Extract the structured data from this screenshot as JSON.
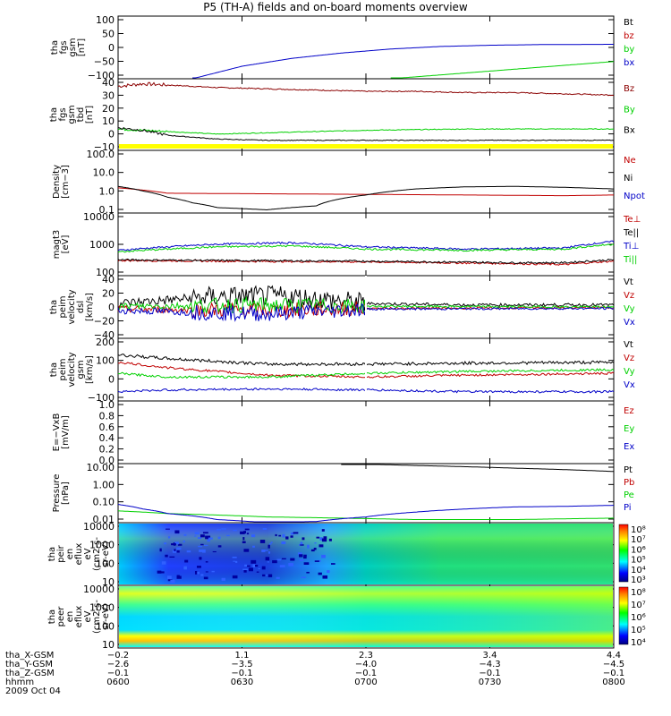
{
  "title": "P5 (TH-A) fields and on-board moments overview",
  "colors": {
    "black": "#000000",
    "red": "#c00000",
    "green": "#00d000",
    "blue": "#0000c8",
    "darkred": "#8b0000",
    "yellow": "#ffff00"
  },
  "chart_data": [
    {
      "type": "line",
      "panel": 1,
      "ylabel": [
        "tha",
        "fgs",
        "gsm",
        "[nT]"
      ],
      "yticks": [
        "100",
        "50",
        "0",
        "−50",
        "−100"
      ],
      "ylim": [
        -100,
        100
      ],
      "series": [
        {
          "name": "Bt",
          "color": "#000000",
          "values": []
        },
        {
          "name": "bz",
          "color": "#c00000",
          "values": []
        },
        {
          "name": "by",
          "color": "#00d000",
          "x": [
            0.55,
            1.0
          ],
          "values": [
            -100,
            -45
          ]
        },
        {
          "name": "bx",
          "color": "#0000c8",
          "x": [
            0.15,
            0.25,
            0.35,
            0.45,
            0.55,
            0.65,
            0.75,
            0.85,
            1.0
          ],
          "values": [
            -100,
            -60,
            -35,
            -18,
            -5,
            3,
            7,
            9,
            10
          ]
        }
      ]
    },
    {
      "type": "line",
      "panel": 2,
      "ylabel": [
        "tha",
        "fgs",
        "gsm",
        "tbd",
        "[nT]"
      ],
      "yticks": [
        "40",
        "30",
        "20",
        "10",
        "0",
        "−10"
      ],
      "ylim": [
        -15,
        42
      ],
      "series": [
        {
          "name": "Bz",
          "color": "#8b0000",
          "x": [
            0,
            0.05,
            0.1,
            0.2,
            0.3,
            0.4,
            0.5,
            0.6,
            0.7,
            0.8,
            0.9,
            1.0
          ],
          "values": [
            36,
            38,
            37,
            35,
            34,
            33,
            32,
            32,
            31,
            31,
            30,
            29
          ]
        },
        {
          "name": "By",
          "color": "#00d000",
          "x": [
            0,
            0.1,
            0.2,
            0.3,
            0.5,
            0.7,
            0.9,
            1.0
          ],
          "values": [
            2,
            0,
            -2,
            -1,
            1,
            2,
            2,
            2
          ]
        },
        {
          "name": "Bx",
          "color": "#000000",
          "x": [
            0,
            0.05,
            0.1,
            0.2,
            0.3,
            0.5,
            0.7,
            0.9,
            1.0
          ],
          "values": [
            3,
            1,
            -3,
            -6,
            -7,
            -7,
            -7,
            -7,
            -7
          ]
        }
      ]
    },
    {
      "type": "line",
      "panel": 3,
      "log": true,
      "ylabel": [
        "Density",
        "[cm−3]"
      ],
      "yticks": [
        "100.0",
        "10.0",
        "1.0",
        "0.1"
      ],
      "ylim": [
        0.06,
        180
      ],
      "series": [
        {
          "name": "Ne",
          "color": "#c00000",
          "x": [
            0,
            0.1,
            0.3,
            0.5,
            0.7,
            0.9,
            1.0
          ],
          "values": [
            1.5,
            0.75,
            0.7,
            0.65,
            0.6,
            0.55,
            0.6
          ]
        },
        {
          "name": "Ni",
          "color": "#000000",
          "x": [
            0,
            0.05,
            0.1,
            0.15,
            0.2,
            0.3,
            0.4,
            0.5,
            0.6,
            0.7,
            0.8,
            0.9,
            1.0
          ],
          "values": [
            1.8,
            1.0,
            0.45,
            0.22,
            0.12,
            0.09,
            0.15,
            0.6,
            1.3,
            1.7,
            1.8,
            1.6,
            1.3
          ]
        },
        {
          "name": "Npot",
          "color": "#0000c8",
          "values": []
        }
      ]
    },
    {
      "type": "line",
      "panel": 4,
      "log": true,
      "ylabel": [
        "magt3",
        "[eV]"
      ],
      "yticks": [
        "10000",
        "1000",
        "100"
      ],
      "ylim": [
        40,
        12000
      ],
      "series": [
        {
          "name": "Te⊥",
          "color": "#c00000",
          "x": [
            0,
            0.2,
            0.5,
            0.8,
            0.9,
            1.0
          ],
          "values": [
            160,
            150,
            140,
            120,
            110,
            150
          ]
        },
        {
          "name": "Te||",
          "color": "#000000",
          "x": [
            0,
            0.2,
            0.5,
            0.8,
            0.9,
            1.0
          ],
          "values": [
            170,
            160,
            150,
            130,
            130,
            170
          ]
        },
        {
          "name": "Ti⊥",
          "color": "#0000c8",
          "x": [
            0,
            0.2,
            0.35,
            0.5,
            0.7,
            0.9,
            1.0
          ],
          "values": [
            400,
            700,
            800,
            550,
            450,
            500,
            900
          ]
        },
        {
          "name": "Ti||",
          "color": "#00d000",
          "x": [
            0,
            0.2,
            0.35,
            0.5,
            0.7,
            0.9,
            1.0
          ],
          "values": [
            350,
            550,
            600,
            450,
            400,
            450,
            700
          ]
        }
      ]
    },
    {
      "type": "line",
      "panel": 5,
      "ylabel": [
        "tha",
        "peim",
        "velocity",
        "dsl",
        "[km/s]"
      ],
      "yticks": [
        "40",
        "20",
        "0",
        "−20",
        "−40"
      ],
      "ylim": [
        -45,
        45
      ],
      "series": [
        {
          "name": "Vt",
          "color": "#000000",
          "x": [
            0,
            0.2,
            0.35,
            0.5,
            0.7,
            1.0
          ],
          "values": [
            5,
            15,
            15,
            5,
            3,
            3
          ]
        },
        {
          "name": "Vz",
          "color": "#c00000",
          "x": [
            0,
            0.3,
            0.5,
            1.0
          ],
          "values": [
            -3,
            -5,
            -2,
            -1
          ]
        },
        {
          "name": "Vy",
          "color": "#00d000",
          "x": [
            0,
            0.3,
            0.5,
            1.0
          ],
          "values": [
            1,
            3,
            1,
            0
          ]
        },
        {
          "name": "Vx",
          "color": "#0000c8",
          "x": [
            0,
            0.3,
            0.5,
            1.0
          ],
          "values": [
            -5,
            -10,
            -3,
            -2
          ]
        }
      ]
    },
    {
      "type": "line",
      "panel": 6,
      "ylabel": [
        "tha",
        "peim",
        "velocity",
        "gsm",
        "[km/s]"
      ],
      "yticks": [
        "200",
        "100",
        "0",
        "−100"
      ],
      "ylim": [
        -120,
        220
      ],
      "series": [
        {
          "name": "Vt",
          "color": "#000000",
          "x": [
            0,
            0.1,
            0.3,
            0.5,
            0.7,
            1.0
          ],
          "values": [
            130,
            110,
            80,
            80,
            85,
            90
          ]
        },
        {
          "name": "Vz",
          "color": "#c00000",
          "x": [
            0,
            0.1,
            0.3,
            0.5,
            0.7,
            1.0
          ],
          "values": [
            90,
            60,
            20,
            10,
            20,
            30
          ]
        },
        {
          "name": "Vy",
          "color": "#00d000",
          "x": [
            0,
            0.1,
            0.3,
            0.5,
            0.7,
            1.0
          ],
          "values": [
            30,
            10,
            10,
            30,
            40,
            50
          ]
        },
        {
          "name": "Vx",
          "color": "#0000c8",
          "x": [
            0,
            0.1,
            0.3,
            0.5,
            0.7,
            1.0
          ],
          "values": [
            -70,
            -60,
            -55,
            -60,
            -70,
            -70
          ]
        }
      ]
    },
    {
      "type": "line",
      "panel": 7,
      "ylabel": [
        "E=−VxB",
        "[mV/m]"
      ],
      "yticks": [
        "1.0",
        "0.8",
        "0.6",
        "0.4",
        "0.2",
        "0.0"
      ],
      "ylim": [
        0,
        1
      ],
      "series": [
        {
          "name": "Ez",
          "color": "#c00000",
          "values": []
        },
        {
          "name": "Ey",
          "color": "#00d000",
          "values": []
        },
        {
          "name": "Ex",
          "color": "#0000c8",
          "values": []
        }
      ]
    },
    {
      "type": "line",
      "panel": 8,
      "log": true,
      "ylabel": [
        "Pressure",
        "[nPa]"
      ],
      "yticks": [
        "10.00",
        "1.00",
        "0.10",
        "0.01"
      ],
      "ylim": [
        0.005,
        40
      ],
      "series": [
        {
          "name": "Pt",
          "color": "#000000",
          "x": [
            0.45,
            0.6,
            0.8,
            1.0
          ],
          "values": [
            40,
            30,
            20,
            12
          ]
        },
        {
          "name": "Pb",
          "color": "#c00000",
          "values": []
        },
        {
          "name": "Pe",
          "color": "#00d000",
          "x": [
            0,
            0.1,
            0.3,
            0.6,
            0.8,
            1.0
          ],
          "values": [
            0.03,
            0.02,
            0.012,
            0.008,
            0.008,
            0.01
          ]
        },
        {
          "name": "Pi",
          "color": "#0000c8",
          "x": [
            0,
            0.05,
            0.1,
            0.2,
            0.3,
            0.4,
            0.5,
            0.6,
            0.7,
            0.8,
            0.9,
            1.0
          ],
          "values": [
            0.08,
            0.04,
            0.02,
            0.008,
            0.005,
            0.006,
            0.012,
            0.025,
            0.04,
            0.055,
            0.06,
            0.07
          ]
        }
      ]
    },
    {
      "type": "heatmap",
      "panel": 9,
      "ylabel": [
        "tha",
        "peir",
        "en",
        "eflux",
        "eV",
        "(cm2-s-",
        "sr-eV)"
      ],
      "yticks": [
        "10000",
        "1000",
        "100",
        "10"
      ],
      "colorbar": [
        "10⁸",
        "10⁷",
        "10⁶",
        "10⁵",
        "10⁴",
        "10³"
      ]
    },
    {
      "type": "heatmap",
      "panel": 10,
      "ylabel": [
        "tha",
        "peer",
        "en",
        "eflux",
        "eV",
        "(cm2-s-",
        "sr-eV)"
      ],
      "yticks": [
        "10000",
        "1000",
        "100",
        "10"
      ],
      "colorbar": [
        "10⁸",
        "10⁷",
        "10⁶",
        "10⁵",
        "10⁴"
      ]
    }
  ],
  "footer": {
    "rows": [
      {
        "label": "tha_X-GSM",
        "values": [
          "−0.2",
          "1.1",
          "2.3",
          "3.4",
          "4.4"
        ]
      },
      {
        "label": "tha_Y-GSM",
        "values": [
          "−2.6",
          "−3.5",
          "−4.0",
          "−4.3",
          "−4.5"
        ]
      },
      {
        "label": "tha_Z-GSM",
        "values": [
          "−0.1",
          "−0.1",
          "−0.1",
          "−0.1",
          "−0.1"
        ]
      },
      {
        "label": "hhmm",
        "values": [
          "0600",
          "0630",
          "0700",
          "0730",
          "0800"
        ]
      }
    ],
    "date": "2009 Oct 04"
  }
}
